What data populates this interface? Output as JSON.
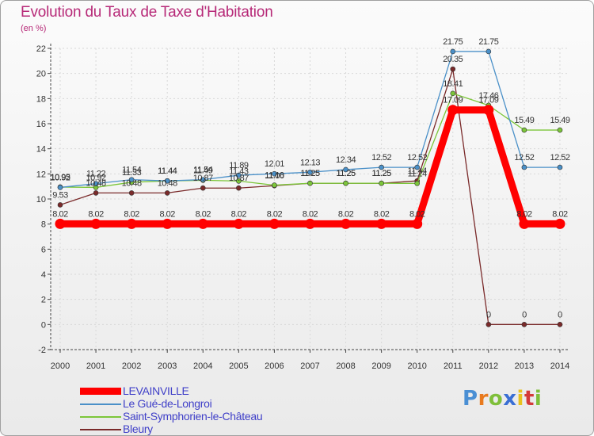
{
  "title": "Evolution du Taux de Taxe d'Habitation",
  "unit_label": "(en %)",
  "brand": {
    "text": "Proxiti",
    "colors": [
      "#4a8fd4",
      "#e87a1e",
      "#7fbf3a",
      "#3a6fd4",
      "#e8c21e",
      "#d43a3a",
      "#7fbf3a"
    ]
  },
  "chart_data": {
    "type": "line",
    "title": "Evolution du Taux de Taxe d'Habitation",
    "xlabel": "",
    "ylabel": "(en %)",
    "x": [
      "2000",
      "2001",
      "2002",
      "2003",
      "2004",
      "2005",
      "2006",
      "2007",
      "2008",
      "2009",
      "2010",
      "2011",
      "2012",
      "2013",
      "2014"
    ],
    "ylim": [
      -2,
      22
    ],
    "yticks": [
      "-2",
      "0",
      "2",
      "4",
      "6",
      "8",
      "10",
      "12",
      "14",
      "16",
      "18",
      "20",
      "22"
    ],
    "grid": true,
    "legend_position": "bottom-left",
    "series": [
      {
        "name": "LEVAINVILLE",
        "color": "#ff0000",
        "values": [
          8.02,
          8.02,
          8.02,
          8.02,
          8.02,
          8.02,
          8.02,
          8.02,
          8.02,
          8.02,
          8.02,
          17.09,
          17.09,
          8.02,
          8.02
        ],
        "labels": [
          "8.02",
          "8.02",
          "8.02",
          "8.02",
          "8.02",
          "8.02",
          "8.02",
          "8.02",
          "8.02",
          "8.02",
          "8.02",
          "17.09",
          "17.09",
          "8.02",
          "8.02"
        ]
      },
      {
        "name": "Le Gué-de-Longroi",
        "color": "#4a90c8",
        "values": [
          10.92,
          11.22,
          11.54,
          11.44,
          11.54,
          11.89,
          12.01,
          12.13,
          12.34,
          12.52,
          12.52,
          21.75,
          21.75,
          12.52,
          12.52
        ],
        "labels": [
          "10.92",
          "11.22",
          "11.54",
          "11.44",
          "11.54",
          "11.89",
          "12.01",
          "12.13",
          "12.34",
          "12.52",
          "12.52",
          "21.75",
          "21.75",
          "12.52",
          "12.52"
        ]
      },
      {
        "name": "Saint-Symphorien-le-Château",
        "color": "#7cc63a",
        "values": [
          10.95,
          10.92,
          11.33,
          11.44,
          11.49,
          11.43,
          11.1,
          11.25,
          11.25,
          11.25,
          11.24,
          18.41,
          17.46,
          15.49,
          15.49
        ],
        "labels": [
          "10.95",
          "10.92",
          "11.33",
          "11.44",
          "11.49",
          "11.43",
          "11.10",
          "11.25",
          "11.25",
          "11.25",
          "11.24",
          "18.41",
          "17.46",
          "15.49",
          "15.49"
        ]
      },
      {
        "name": "Bleury",
        "color": "#7a2a2a",
        "values": [
          9.53,
          10.48,
          10.48,
          10.48,
          10.87,
          10.87,
          11.06,
          11.25,
          11.25,
          11.25,
          11.44,
          20.35,
          0,
          0,
          0
        ],
        "labels": [
          "9.53",
          "10.48",
          "10.48",
          "10.48",
          "10.87",
          "10.87",
          "11.06",
          "11.25",
          "11.25",
          "11.25",
          "11.44",
          "20.35",
          "0",
          "0",
          "0"
        ]
      }
    ]
  }
}
